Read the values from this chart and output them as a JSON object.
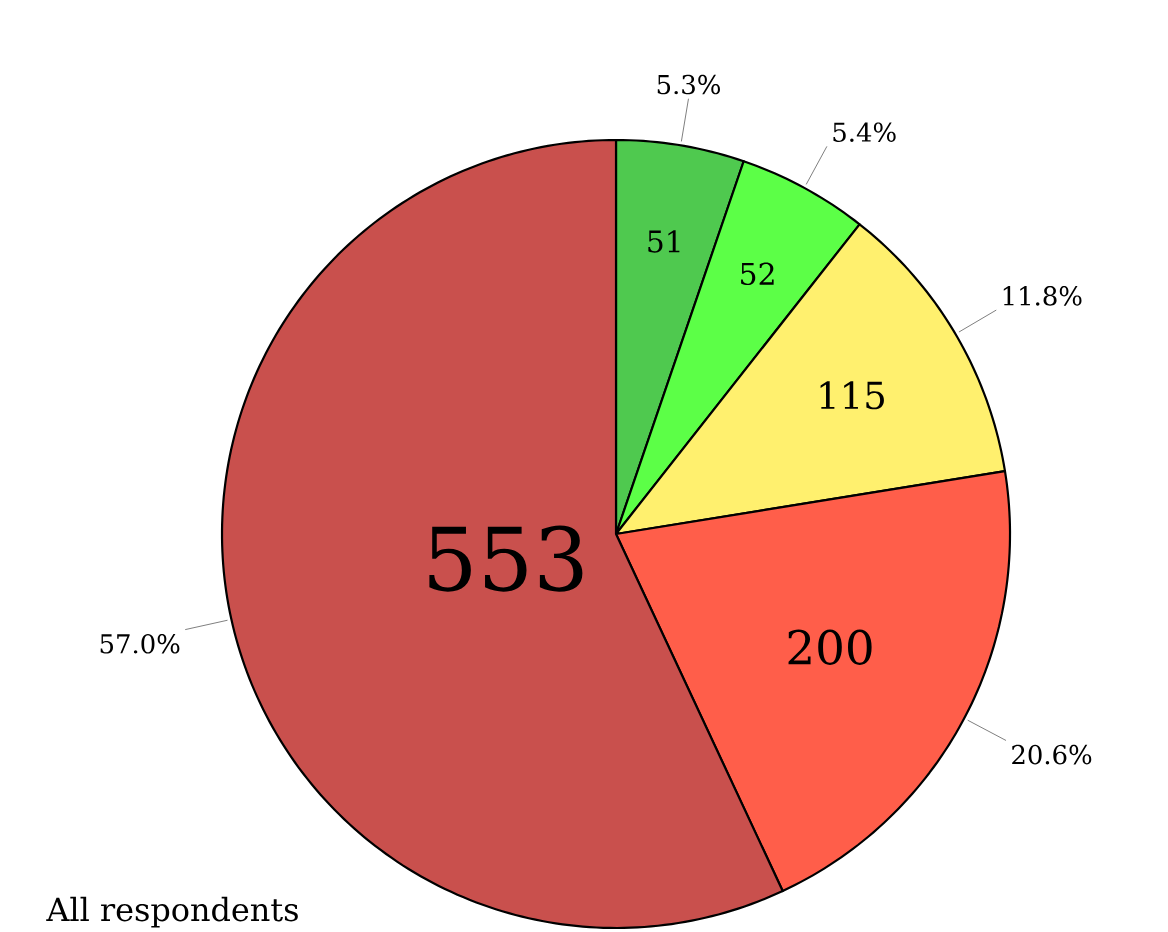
{
  "chart_data": {
    "type": "pie",
    "title": "All respondents",
    "categories": [
      null,
      null,
      null,
      null,
      null
    ],
    "values": [
      51,
      52,
      115,
      200,
      553
    ],
    "value_labels": [
      "51",
      "52",
      "115",
      "200",
      "553"
    ],
    "annotations": [
      "5.3%",
      "5.4%",
      "11.8%",
      "20.6%",
      "57.0%"
    ],
    "colors": [
      "#4fc94f",
      "#5cff47",
      "#fff06e",
      "#ff5e4a",
      "#c9504d"
    ]
  }
}
